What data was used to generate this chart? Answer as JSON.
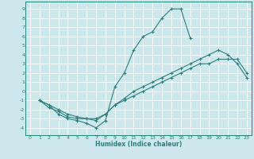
{
  "title": "",
  "xlabel": "Humidex (Indice chaleur)",
  "xlim": [
    -0.5,
    23.5
  ],
  "ylim": [
    -4.8,
    9.8
  ],
  "xticks": [
    0,
    1,
    2,
    3,
    4,
    5,
    6,
    7,
    8,
    9,
    10,
    11,
    12,
    13,
    14,
    15,
    16,
    17,
    18,
    19,
    20,
    21,
    22,
    23
  ],
  "yticks": [
    -4,
    -3,
    -2,
    -1,
    0,
    1,
    2,
    3,
    4,
    5,
    6,
    7,
    8,
    9
  ],
  "bg_color": "#cce8ec",
  "grid_color": "#ffffff",
  "line_color": "#2e7d7d",
  "line1_x": [
    1,
    2,
    3,
    4,
    5,
    6,
    7,
    8,
    9,
    10,
    11,
    12,
    13,
    14,
    15,
    16,
    17
  ],
  "line1_y": [
    -1,
    -1.5,
    -2.5,
    -3,
    -3.2,
    -3.5,
    -4,
    -3.2,
    0.5,
    2,
    4.5,
    6,
    6.5,
    8,
    9,
    9,
    5.8
  ],
  "line2_x": [
    1,
    2,
    3,
    4,
    5,
    6,
    7,
    8,
    9,
    10,
    11,
    12,
    13,
    14,
    15,
    16,
    17,
    18,
    19,
    20,
    21,
    22,
    23
  ],
  "line2_y": [
    -1,
    -1.8,
    -2.2,
    -2.8,
    -3,
    -3,
    -3.2,
    -2.5,
    -1.5,
    -0.8,
    0,
    0.5,
    1,
    1.5,
    2,
    2.5,
    3,
    3.5,
    4,
    4.5,
    4,
    3,
    1.5
  ],
  "line3_x": [
    1,
    3,
    4,
    5,
    6,
    7,
    8,
    9,
    10,
    11,
    12,
    13,
    14,
    15,
    16,
    17,
    18,
    19,
    20,
    21,
    22,
    23
  ],
  "line3_y": [
    -1,
    -2,
    -2.5,
    -2.8,
    -3,
    -3,
    -2.5,
    -1.5,
    -1,
    -0.5,
    0,
    0.5,
    1,
    1.5,
    2,
    2.5,
    3,
    3,
    3.5,
    3.5,
    3.5,
    2
  ],
  "marker": "+"
}
